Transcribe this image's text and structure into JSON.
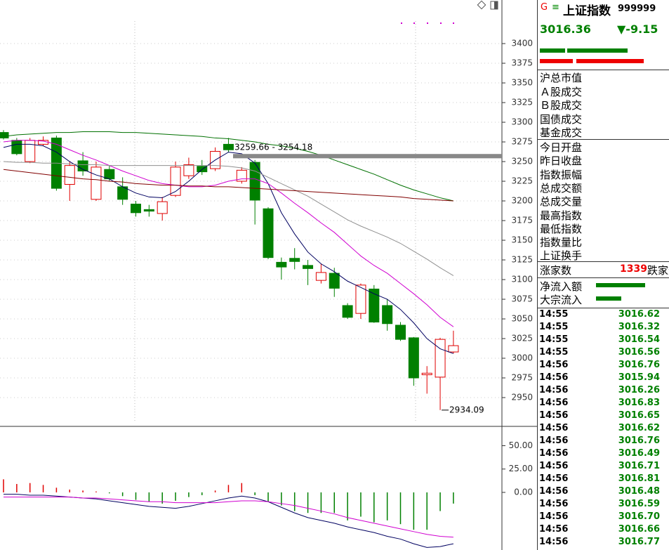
{
  "chart_data": [
    {
      "type": "candlestick",
      "open": [
        3287,
        3277,
        3250,
        3272,
        3280,
        3221,
        3251,
        3202,
        3240,
        3218,
        3196,
        3189,
        3184,
        3207,
        3232,
        3244,
        3241,
        3272,
        3225,
        3249,
        3190,
        3122,
        3127,
        3118,
        3099,
        3108,
        3067,
        3057,
        3088,
        3067,
        3042,
        3026,
        2979,
        2976,
        3008
      ],
      "high": [
        3290,
        3280,
        3280,
        3282,
        3283,
        3250,
        3262,
        3250,
        3245,
        3230,
        3200,
        3195,
        3205,
        3250,
        3255,
        3252,
        3268,
        3280,
        3243,
        3252,
        3192,
        3128,
        3140,
        3125,
        3120,
        3115,
        3070,
        3095,
        3093,
        3075,
        3046,
        3027,
        2990,
        3026,
        3035
      ],
      "low": [
        3278,
        3258,
        3248,
        3270,
        3213,
        3200,
        3232,
        3200,
        3225,
        3195,
        3180,
        3180,
        3175,
        3205,
        3228,
        3233,
        3238,
        3262,
        3222,
        3170,
        3126,
        3100,
        3113,
        3093,
        3095,
        3078,
        3050,
        3050,
        3045,
        3035,
        3022,
        2965,
        2955,
        2934.09,
        3006
      ],
      "close": [
        3280,
        3260,
        3277,
        3277,
        3216,
        3245,
        3238,
        3243,
        3228,
        3202,
        3185,
        3187,
        3199,
        3243,
        3246,
        3237,
        3263,
        3265,
        3239,
        3201,
        3128,
        3116,
        3123,
        3114,
        3109,
        3089,
        3052,
        3093,
        3046,
        3044,
        3024,
        2975,
        2981,
        3024,
        3016
      ],
      "up_color": "#e00000",
      "down_color": "#008000",
      "series": [
        {
          "color": "#000060",
          "values": [
            3268,
            3272,
            3272,
            3270,
            3262,
            3250,
            3240,
            3233,
            3228,
            3218,
            3210,
            3205,
            3204,
            3212,
            3225,
            3240,
            3252,
            3262,
            3260,
            3248,
            3222,
            3185,
            3158,
            3135,
            3120,
            3110,
            3098,
            3090,
            3082,
            3075,
            3062,
            3045,
            3025,
            3012,
            3006
          ]
        },
        {
          "color": "#d000d0",
          "values": [
            3275,
            3277,
            3277,
            3276,
            3272,
            3265,
            3258,
            3252,
            3245,
            3238,
            3232,
            3226,
            3222,
            3220,
            3218,
            3218,
            3220,
            3225,
            3228,
            3228,
            3222,
            3210,
            3197,
            3185,
            3172,
            3160,
            3145,
            3130,
            3118,
            3108,
            3095,
            3082,
            3068,
            3052,
            3040
          ]
        },
        {
          "color": "#909090",
          "values": [
            3250,
            3249,
            3249,
            3248,
            3248,
            3247,
            3246,
            3246,
            3245,
            3245,
            3245,
            3245,
            3245,
            3245,
            3245,
            3245,
            3245,
            3244,
            3242,
            3238,
            3230,
            3222,
            3214,
            3206,
            3196,
            3186,
            3176,
            3168,
            3161,
            3154,
            3146,
            3136,
            3126,
            3115,
            3105
          ]
        },
        {
          "color": "#007000",
          "values": [
            3282,
            3284,
            3285,
            3286,
            3287,
            3287,
            3288,
            3288,
            3288,
            3287,
            3287,
            3286,
            3285,
            3284,
            3283,
            3282,
            3280,
            3279,
            3277,
            3275,
            3272,
            3270,
            3267,
            3263,
            3258,
            3252,
            3246,
            3240,
            3234,
            3227,
            3220,
            3214,
            3209,
            3204,
            3200
          ]
        },
        {
          "color": "#800000",
          "values": [
            3240,
            3238,
            3236,
            3234,
            3232,
            3230,
            3228,
            3227,
            3225,
            3224,
            3222,
            3221,
            3220,
            3220,
            3219,
            3219,
            3218,
            3218,
            3217,
            3216,
            3215,
            3214,
            3213,
            3212,
            3211,
            3210,
            3209,
            3208,
            3207,
            3206,
            3205,
            3203,
            3202,
            3201,
            3200
          ]
        }
      ],
      "band": {
        "high": 3259.66,
        "low": 3254.18,
        "label": "3259.66 - 3254.18"
      },
      "low_marker": 2934.09,
      "ylim": [
        2913.4,
        3455.4
      ],
      "yticks": [
        2950,
        2975,
        3000,
        3025,
        3050,
        3075,
        3100,
        3125,
        3150,
        3175,
        3200,
        3225,
        3250,
        3275,
        3300,
        3325,
        3350,
        3375,
        3400
      ],
      "grid": true
    },
    {
      "type": "bar",
      "values": [
        14,
        9,
        10,
        8,
        5,
        3,
        2,
        1,
        -1,
        -4,
        -8,
        -10,
        -12,
        -9,
        -5,
        -3,
        2,
        8,
        10,
        -3,
        -10,
        -14,
        -20,
        -22,
        -22,
        -22,
        -30,
        -26,
        -32,
        -30,
        -34,
        -40,
        -40,
        -20,
        -12
      ],
      "up_color": "#e00000",
      "down_color": "#008000",
      "series": [
        {
          "color": "#000060",
          "values": [
            -2,
            -2,
            -3,
            -3,
            -4,
            -5,
            -6,
            -7,
            -9,
            -11,
            -13,
            -15,
            -16,
            -17,
            -15,
            -12,
            -9,
            -6,
            -4,
            -6,
            -10,
            -16,
            -22,
            -27,
            -30,
            -33,
            -37,
            -40,
            -43,
            -47,
            -50,
            -55,
            -59,
            -58,
            -55
          ]
        },
        {
          "color": "#d000d0",
          "values": [
            -5,
            -5,
            -5,
            -5,
            -5,
            -5,
            -6,
            -6,
            -7,
            -8,
            -9,
            -10,
            -10,
            -11,
            -11,
            -11,
            -11,
            -10,
            -9,
            -9,
            -10,
            -12,
            -14,
            -17,
            -20,
            -23,
            -27,
            -30,
            -33,
            -36,
            -39,
            -42,
            -45,
            -47,
            -48
          ]
        }
      ],
      "ylim": [
        -61.7,
        70.7
      ],
      "yticks": [
        {
          "value": 0,
          "label": "0.00"
        },
        {
          "value": 25,
          "label": "25.00"
        },
        {
          "value": 50,
          "label": "50.00"
        }
      ]
    }
  ],
  "info_panel": {
    "header": {
      "badge": "G",
      "menu": "≡",
      "name": "上证指数",
      "code": "999999",
      "price": "3016.36",
      "change": "▼-9.15"
    },
    "group1": [
      "沪总市值",
      "Ａ股成交",
      "Ｂ股成交",
      "国债成交",
      "基金成交"
    ],
    "group2": [
      "今日开盘",
      "昨日收盘",
      "指数振幅",
      "总成交额",
      "总成交量",
      "最高指数",
      "最低指数",
      "指数量比",
      "上证换手"
    ],
    "breadth": {
      "up_label": "涨家数",
      "up_count": "1339",
      "down_label": "跌家数"
    },
    "flows": [
      "净流入额",
      "大宗流入"
    ],
    "ticks": [
      [
        "14:55",
        "3016.62"
      ],
      [
        "14:55",
        "3016.32"
      ],
      [
        "14:55",
        "3016.54"
      ],
      [
        "14:55",
        "3016.56"
      ],
      [
        "14:56",
        "3016.76"
      ],
      [
        "14:56",
        "3015.94"
      ],
      [
        "14:56",
        "3016.26"
      ],
      [
        "14:56",
        "3016.83"
      ],
      [
        "14:56",
        "3016.65"
      ],
      [
        "14:56",
        "3016.62"
      ],
      [
        "14:56",
        "3016.76"
      ],
      [
        "14:56",
        "3016.49"
      ],
      [
        "14:56",
        "3016.71"
      ],
      [
        "14:56",
        "3016.81"
      ],
      [
        "14:56",
        "3016.48"
      ],
      [
        "14:56",
        "3016.59"
      ],
      [
        "14:56",
        "3016.70"
      ],
      [
        "14:56",
        "3016.66"
      ],
      [
        "14:56",
        "3016.77"
      ]
    ]
  }
}
